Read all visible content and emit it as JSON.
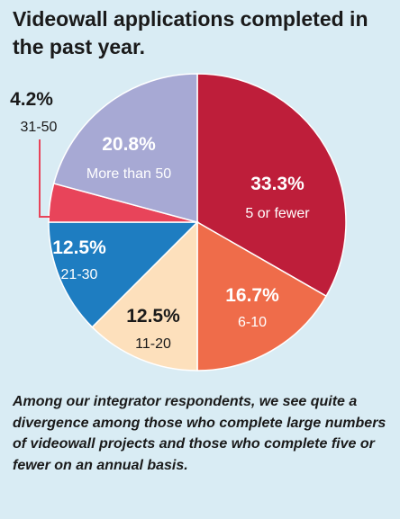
{
  "title": "Videowall applications completed in the past year.",
  "caption": "Among our integrator respondents, we see quite a divergence among those who complete large numbers of videowall projects and those who complete five or fewer on an annual basis.",
  "chart_data": {
    "type": "pie",
    "title": "Videowall applications completed in the past year.",
    "slices": [
      {
        "label": "5 or fewer",
        "value": 33.3,
        "display": "33.3%",
        "color": "#be1e3a"
      },
      {
        "label": "6-10",
        "value": 16.7,
        "display": "16.7%",
        "color": "#ef6c4a"
      },
      {
        "label": "11-20",
        "value": 12.5,
        "display": "12.5%",
        "color": "#fde0bc"
      },
      {
        "label": "21-30",
        "value": 12.5,
        "display": "12.5%",
        "color": "#1e7dc1"
      },
      {
        "label": "31-50",
        "value": 4.2,
        "display": "4.2%",
        "color": "#e8445a"
      },
      {
        "label": "More than 50",
        "value": 20.8,
        "display": "20.8%",
        "color": "#a7a9d4"
      }
    ]
  }
}
